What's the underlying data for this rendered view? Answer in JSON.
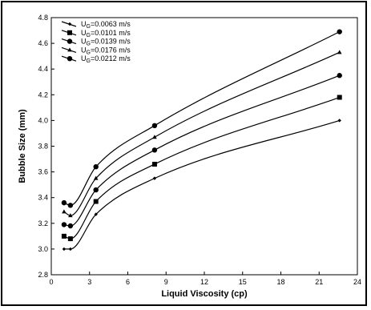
{
  "chart_data": {
    "type": "line",
    "xlabel": "Liquid Viscosity (cp)",
    "ylabel": "Bubble Size (mm)",
    "xlim": [
      0,
      24
    ],
    "ylim": [
      2.8,
      4.8
    ],
    "xticks": [
      0,
      3,
      6,
      9,
      12,
      15,
      18,
      21,
      24
    ],
    "yticks": [
      2.8,
      3.0,
      3.2,
      3.4,
      3.6,
      3.8,
      4.0,
      4.2,
      4.4,
      4.6,
      4.8
    ],
    "xtick_labels": [
      "0",
      "3",
      "6",
      "9",
      "12",
      "15",
      "18",
      "21",
      "24"
    ],
    "ytick_labels": [
      "2.8",
      "3.0",
      "3.2",
      "3.4",
      "3.6",
      "3.8",
      "4.0",
      "4.2",
      "4.4",
      "4.6",
      "4.8"
    ],
    "x": [
      1.0,
      1.5,
      3.5,
      8.1,
      22.6
    ],
    "grid": false,
    "legend_position": "top-left",
    "series": [
      {
        "name": "U_G=0.0063 m/s",
        "marker": "diamond",
        "values": [
          3.0,
          3.0,
          3.27,
          3.55,
          4.0
        ]
      },
      {
        "name": "U_G=0.0101 m/s",
        "marker": "square",
        "values": [
          3.1,
          3.08,
          3.37,
          3.66,
          4.18
        ]
      },
      {
        "name": "U_G=0.0139 m/s",
        "marker": "circle",
        "values": [
          3.19,
          3.18,
          3.46,
          3.77,
          4.35
        ]
      },
      {
        "name": "U_G=0.0176 m/s",
        "marker": "triangle",
        "values": [
          3.29,
          3.26,
          3.55,
          3.87,
          4.53
        ]
      },
      {
        "name": "U_G=0.0212 m/s",
        "marker": "circle",
        "values": [
          3.36,
          3.34,
          3.64,
          3.96,
          4.69
        ]
      }
    ],
    "legend_labels": [
      {
        "sub": "G",
        "rest": "=0.0063 m/s"
      },
      {
        "sub": "G",
        "rest": "=0.0101 m/s"
      },
      {
        "sub": "G",
        "rest": "=0.0139 m/s"
      },
      {
        "sub": "G",
        "rest": "=0.0176 m/s"
      },
      {
        "sub": "G",
        "rest": "=0.0212 m/s"
      }
    ],
    "legend_prefix": "U"
  }
}
